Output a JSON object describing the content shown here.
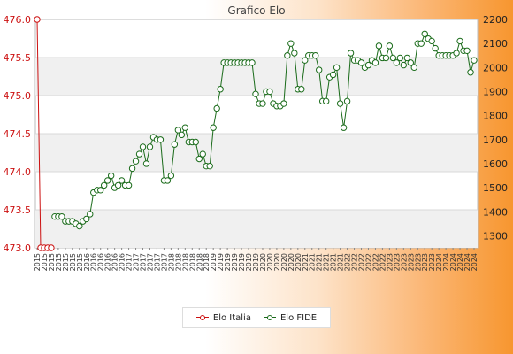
{
  "chart_data": {
    "type": "line",
    "title": "Grafico Elo",
    "legend_position": "bottom",
    "grid": true,
    "y_left": {
      "ticks": [
        "476.0",
        "475.5",
        "475.0",
        "474.5",
        "474.0",
        "473.5",
        "473.0"
      ],
      "range": [
        473.0,
        476.0
      ],
      "color": "#cc1111"
    },
    "y_right": {
      "ticks": [
        "2200",
        "2100",
        "2000",
        "1900",
        "1800",
        "1700",
        "1600",
        "1500",
        "1400",
        "1300"
      ],
      "range": [
        1250,
        2200
      ]
    },
    "x_tick_labels": [
      "2015",
      "2016",
      "2017",
      "2018",
      "2019",
      "2020",
      "2021",
      "2022",
      "2023",
      "2024"
    ],
    "series": [
      {
        "name": "Elo Italia",
        "axis": "left",
        "color": "#cc1111",
        "x_start": 0,
        "values": [
          476.0,
          473.0,
          473.0,
          473.0,
          473.0
        ]
      },
      {
        "name": "Elo FIDE",
        "axis": "right",
        "color": "#1a6b1a",
        "x_start": 5,
        "values": [
          1380,
          1380,
          1380,
          1360,
          1360,
          1360,
          1350,
          1340,
          1360,
          1370,
          1390,
          1480,
          1490,
          1490,
          1510,
          1530,
          1550,
          1500,
          1510,
          1530,
          1510,
          1510,
          1580,
          1610,
          1640,
          1670,
          1600,
          1670,
          1710,
          1700,
          1700,
          1530,
          1530,
          1550,
          1680,
          1740,
          1720,
          1750,
          1690,
          1690,
          1690,
          1620,
          1640,
          1590,
          1590,
          1750,
          1830,
          1910,
          2020,
          2020,
          2020,
          2020,
          2020,
          2020,
          2020,
          2020,
          2020,
          1890,
          1850,
          1850,
          1900,
          1900,
          1850,
          1840,
          1840,
          1850,
          2050,
          2100,
          2060,
          1910,
          1910,
          2030,
          2050,
          2050,
          2050,
          1990,
          1860,
          1860,
          1960,
          1970,
          2000,
          1850,
          1750,
          1860,
          2060,
          2030,
          2030,
          2020,
          2000,
          2010,
          2030,
          2020,
          2090,
          2040,
          2040,
          2090,
          2040,
          2020,
          2040,
          2010,
          2040,
          2020,
          2000,
          2100,
          2100,
          2140,
          2120,
          2110,
          2080,
          2050,
          2050,
          2050,
          2050,
          2050,
          2060,
          2110,
          2070,
          2070,
          1980,
          2030
        ]
      }
    ]
  }
}
